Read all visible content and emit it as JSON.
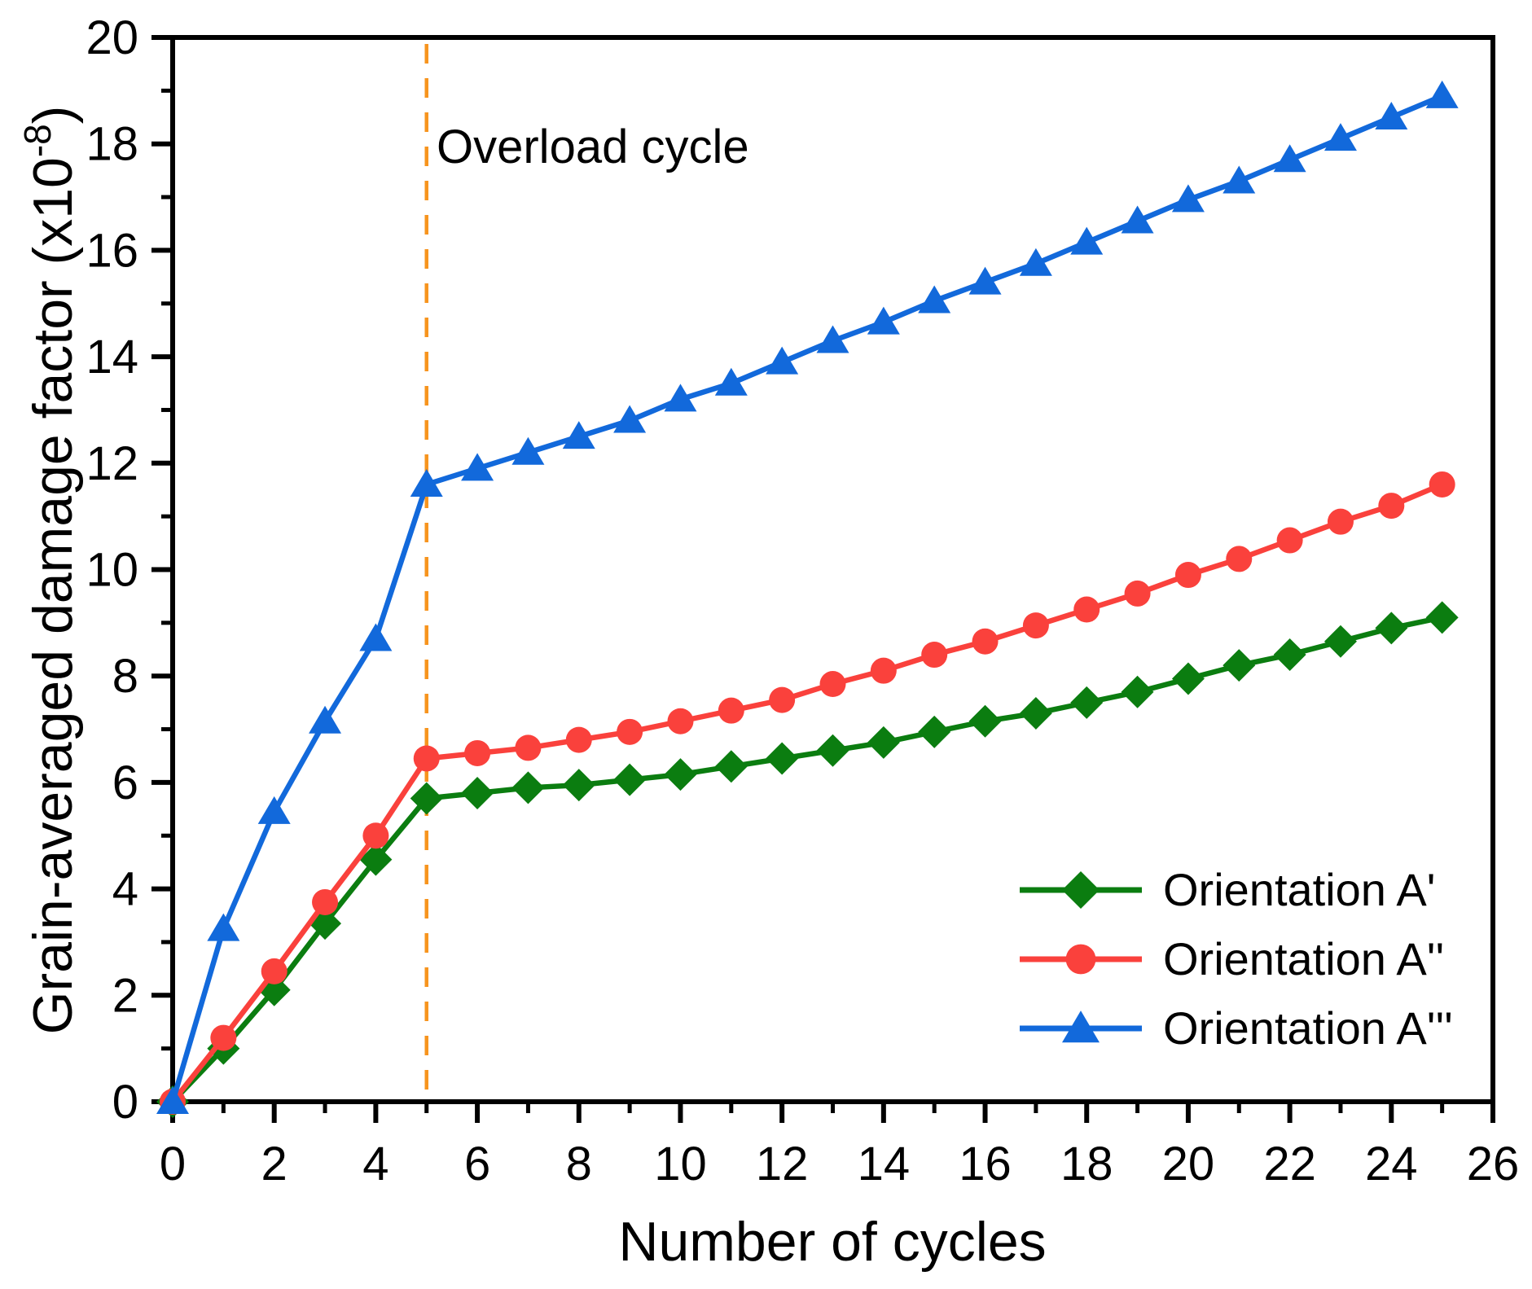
{
  "figure": {
    "ylabel": {
      "prefix": "Grain-averaged damage factor (x10",
      "superscript": "-8",
      "suffix": ")"
    }
  },
  "chart_data": {
    "type": "line",
    "title": "",
    "xlabel": "Number of cycles",
    "ylabel": "Grain-averaged damage factor (x10^-8)",
    "xlim": [
      0,
      26
    ],
    "ylim": [
      0,
      20
    ],
    "x_tick_step": 2,
    "y_tick_step": 2,
    "x_minor_step": 1,
    "y_minor_step": 1,
    "grid": false,
    "legend_position": "lower right",
    "x": [
      0,
      1,
      2,
      3,
      4,
      5,
      6,
      7,
      8,
      9,
      10,
      11,
      12,
      13,
      14,
      15,
      16,
      17,
      18,
      19,
      20,
      21,
      22,
      23,
      24,
      25
    ],
    "series": [
      {
        "name": "Orientation A'",
        "marker": "diamond",
        "color": "#0B7D10",
        "values": [
          0,
          1.0,
          2.1,
          3.35,
          4.55,
          5.7,
          5.8,
          5.9,
          5.95,
          6.05,
          6.15,
          6.3,
          6.45,
          6.6,
          6.75,
          6.95,
          7.15,
          7.3,
          7.5,
          7.7,
          7.95,
          8.2,
          8.4,
          8.65,
          8.9,
          9.1
        ]
      },
      {
        "name": "Orientation A''",
        "marker": "circle",
        "color": "#FA413C",
        "values": [
          0,
          1.2,
          2.45,
          3.75,
          5.0,
          6.45,
          6.55,
          6.65,
          6.8,
          6.95,
          7.15,
          7.35,
          7.55,
          7.85,
          8.1,
          8.4,
          8.65,
          8.95,
          9.25,
          9.55,
          9.9,
          10.2,
          10.55,
          10.9,
          11.2,
          11.6
        ]
      },
      {
        "name": "Orientation A'''",
        "marker": "triangle",
        "color": "#1269DB",
        "values": [
          0,
          3.25,
          5.45,
          7.15,
          8.7,
          11.6,
          11.9,
          12.2,
          12.5,
          12.8,
          13.2,
          13.5,
          13.9,
          14.3,
          14.65,
          15.05,
          15.4,
          15.75,
          16.15,
          16.55,
          16.95,
          17.3,
          17.7,
          18.1,
          18.5,
          18.9
        ]
      }
    ],
    "vline": {
      "x": 5,
      "label": "Overload cycle",
      "color": "#F7941E",
      "style": "dashed"
    }
  }
}
